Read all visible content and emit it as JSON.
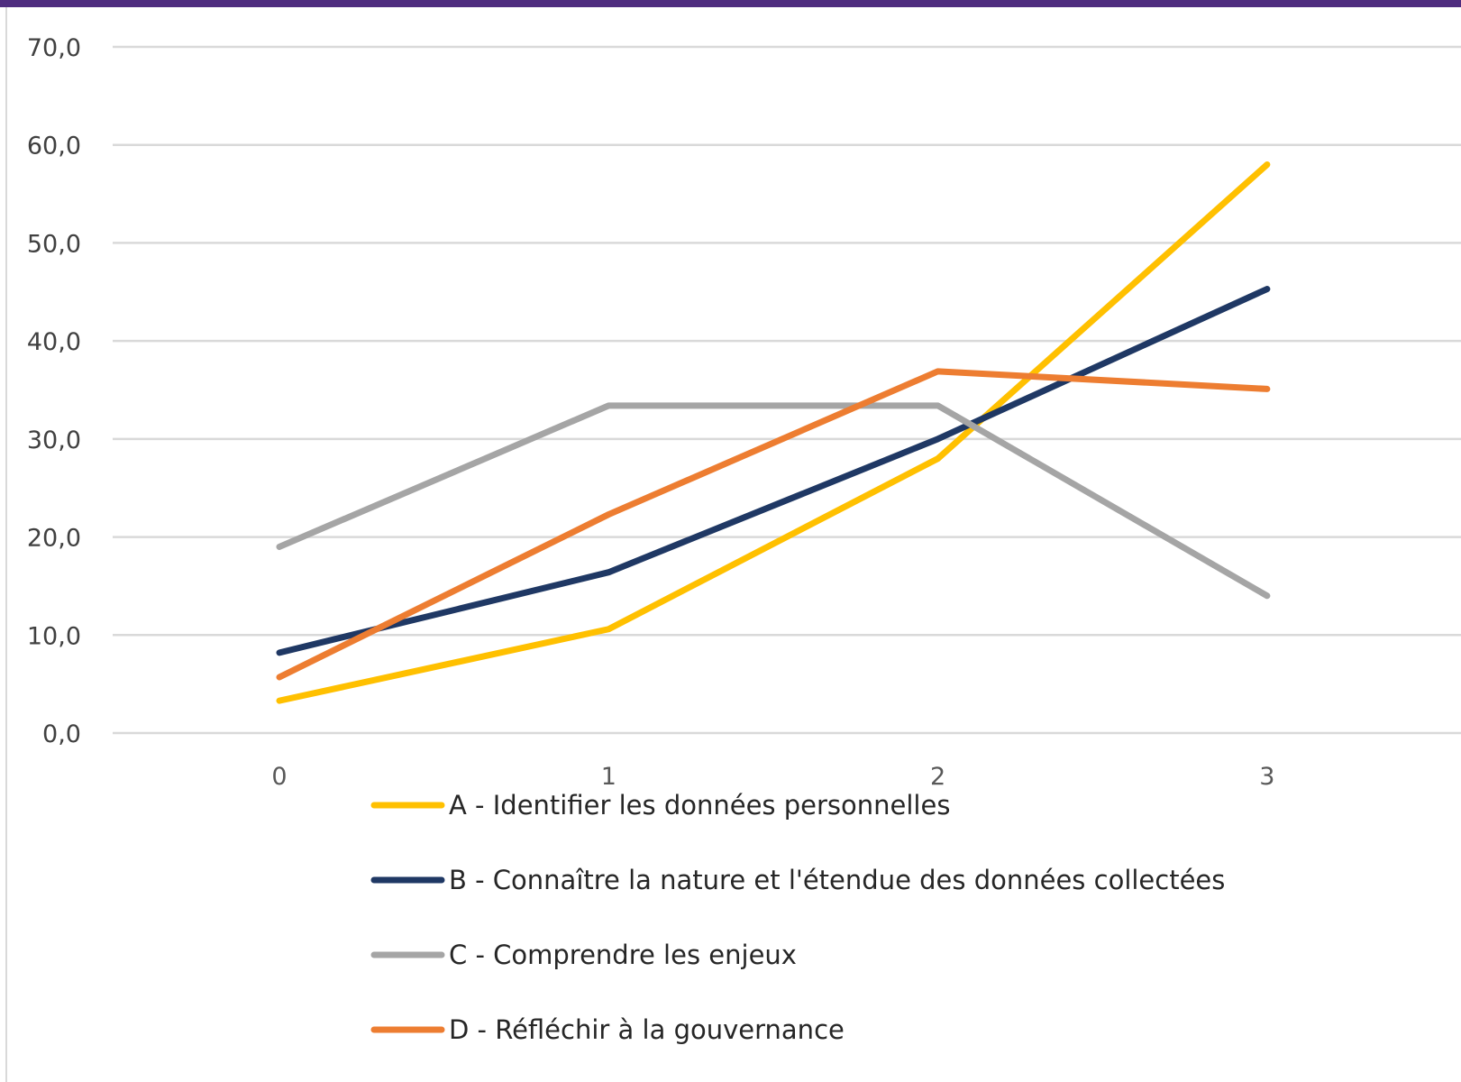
{
  "chart_data": {
    "type": "line",
    "x": [
      0,
      1,
      2,
      3
    ],
    "x_tick_labels": [
      "0",
      "1",
      "2",
      "3"
    ],
    "ylim": [
      0,
      70
    ],
    "y_ticks": [
      0,
      10,
      20,
      30,
      40,
      50,
      60,
      70
    ],
    "y_tick_labels": [
      "0,0",
      "10,0",
      "20,0",
      "30,0",
      "40,0",
      "50,0",
      "60,0",
      "70,0"
    ],
    "grid": true,
    "legend_position": "bottom",
    "series": [
      {
        "name": "A - Identifier les données personnelles",
        "color": "#ffc000",
        "values": [
          3.3,
          10.6,
          28.0,
          58.0
        ]
      },
      {
        "name": "B - Connaître la nature et l'étendue des données collectées",
        "color": "#1f3864",
        "values": [
          8.2,
          16.4,
          30.0,
          45.3
        ]
      },
      {
        "name": "C - Comprendre les enjeux",
        "color": "#a5a5a5",
        "values": [
          19.0,
          33.4,
          33.4,
          14.0
        ]
      },
      {
        "name": "D - Réfléchir à la gouvernance",
        "color": "#ed7d31",
        "values": [
          5.7,
          22.3,
          36.9,
          35.1
        ]
      }
    ]
  }
}
